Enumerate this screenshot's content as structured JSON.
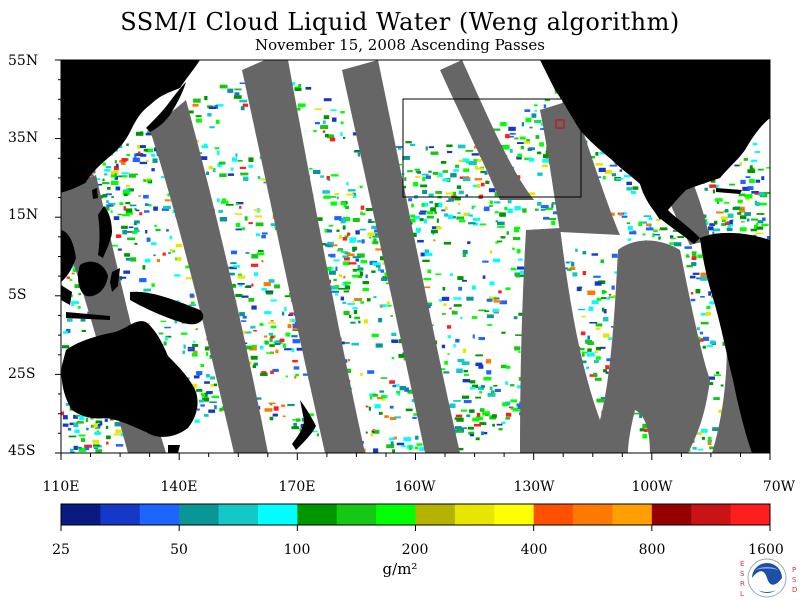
{
  "title": "SSM/I Cloud Liquid Water (Weng algorithm)",
  "subtitle": "November 15, 2008  Ascending Passes",
  "lat_labels": [
    "55N",
    "35N",
    "15N",
    "5S",
    "25S",
    "45S"
  ],
  "lon_labels": [
    "110E",
    "140E",
    "170E",
    "160W",
    "130W",
    "100W",
    "70W"
  ],
  "colorbar": {
    "labels": [
      "25",
      "50",
      "100",
      "200",
      "400",
      "800",
      "1600"
    ],
    "units": "g/m²",
    "colors": [
      "#0a1a80",
      "#1438c8",
      "#1e64ff",
      "#0a9696",
      "#14c8c8",
      "#00ffff",
      "#009600",
      "#14c814",
      "#00ff00",
      "#b4b400",
      "#e6e600",
      "#ffff00",
      "#ff5000",
      "#ff7800",
      "#ffa000",
      "#960000",
      "#c81414",
      "#ff1e1e"
    ]
  },
  "map_colors": {
    "land": "#000000",
    "gap": "#666666",
    "ocean": "#ffffff"
  },
  "logo": {
    "left": [
      "E",
      "S",
      "R",
      "L"
    ],
    "right": [
      "P",
      "S",
      "D"
    ],
    "center": "NOAA"
  }
}
